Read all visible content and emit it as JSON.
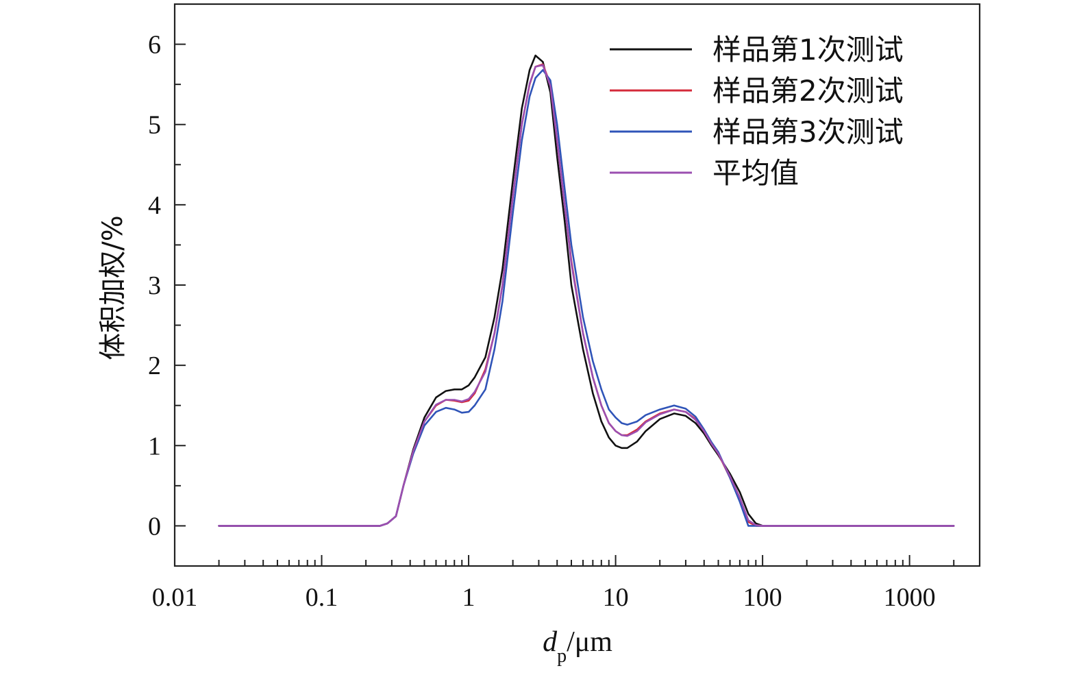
{
  "chart_data": {
    "type": "line",
    "x_scale": "log",
    "xlim": [
      0.01,
      3000
    ],
    "ylim": [
      -0.5,
      6.5
    ],
    "xlabel_main": "d",
    "xlabel_sub": "p",
    "xlabel_unit": "/μm",
    "ylabel": "体积加权/%",
    "x_ticks": [
      "0.01",
      "0.1",
      "1",
      "10",
      "100",
      "1000"
    ],
    "y_ticks": [
      "0",
      "1",
      "2",
      "3",
      "4",
      "5",
      "6"
    ],
    "legend_position": "top-right",
    "series": [
      {
        "name": "样品第1次测试",
        "color": "#111111",
        "points": [
          [
            0.02,
            0
          ],
          [
            0.1,
            0
          ],
          [
            0.25,
            0
          ],
          [
            0.28,
            0.03
          ],
          [
            0.32,
            0.12
          ],
          [
            0.36,
            0.5
          ],
          [
            0.42,
            0.95
          ],
          [
            0.5,
            1.35
          ],
          [
            0.6,
            1.6
          ],
          [
            0.7,
            1.68
          ],
          [
            0.8,
            1.7
          ],
          [
            0.9,
            1.7
          ],
          [
            1.0,
            1.75
          ],
          [
            1.1,
            1.85
          ],
          [
            1.3,
            2.1
          ],
          [
            1.5,
            2.6
          ],
          [
            1.7,
            3.2
          ],
          [
            2.0,
            4.3
          ],
          [
            2.3,
            5.2
          ],
          [
            2.6,
            5.68
          ],
          [
            2.85,
            5.86
          ],
          [
            3.2,
            5.78
          ],
          [
            3.6,
            5.4
          ],
          [
            4.0,
            4.6
          ],
          [
            4.5,
            3.8
          ],
          [
            5.0,
            3.0
          ],
          [
            6.0,
            2.2
          ],
          [
            7.0,
            1.65
          ],
          [
            8.0,
            1.3
          ],
          [
            9.0,
            1.1
          ],
          [
            10,
            1.0
          ],
          [
            11,
            0.97
          ],
          [
            12,
            0.97
          ],
          [
            14,
            1.05
          ],
          [
            16,
            1.18
          ],
          [
            20,
            1.33
          ],
          [
            25,
            1.4
          ],
          [
            30,
            1.37
          ],
          [
            35,
            1.28
          ],
          [
            40,
            1.15
          ],
          [
            45,
            1.0
          ],
          [
            50,
            0.88
          ],
          [
            60,
            0.65
          ],
          [
            70,
            0.42
          ],
          [
            80,
            0.15
          ],
          [
            90,
            0.03
          ],
          [
            100,
            0
          ],
          [
            500,
            0
          ],
          [
            2000,
            0
          ]
        ]
      },
      {
        "name": "样品第2次测试",
        "color": "#d42a3a",
        "points": [
          [
            0.02,
            0
          ],
          [
            0.1,
            0
          ],
          [
            0.25,
            0
          ],
          [
            0.28,
            0.03
          ],
          [
            0.32,
            0.12
          ],
          [
            0.36,
            0.5
          ],
          [
            0.42,
            0.93
          ],
          [
            0.5,
            1.3
          ],
          [
            0.6,
            1.5
          ],
          [
            0.7,
            1.57
          ],
          [
            0.8,
            1.56
          ],
          [
            0.9,
            1.54
          ],
          [
            1.0,
            1.56
          ],
          [
            1.1,
            1.65
          ],
          [
            1.3,
            1.95
          ],
          [
            1.5,
            2.4
          ],
          [
            1.7,
            3.0
          ],
          [
            2.0,
            4.1
          ],
          [
            2.3,
            5.0
          ],
          [
            2.6,
            5.5
          ],
          [
            2.85,
            5.72
          ],
          [
            3.2,
            5.75
          ],
          [
            3.6,
            5.5
          ],
          [
            4.0,
            4.8
          ],
          [
            4.5,
            4.0
          ],
          [
            5.0,
            3.3
          ],
          [
            6.0,
            2.4
          ],
          [
            7.0,
            1.85
          ],
          [
            8.0,
            1.5
          ],
          [
            9.0,
            1.28
          ],
          [
            10,
            1.18
          ],
          [
            11,
            1.13
          ],
          [
            12,
            1.13
          ],
          [
            14,
            1.2
          ],
          [
            16,
            1.3
          ],
          [
            20,
            1.4
          ],
          [
            25,
            1.45
          ],
          [
            30,
            1.42
          ],
          [
            35,
            1.33
          ],
          [
            40,
            1.18
          ],
          [
            45,
            1.02
          ],
          [
            50,
            0.9
          ],
          [
            60,
            0.6
          ],
          [
            70,
            0.32
          ],
          [
            80,
            0.05
          ],
          [
            90,
            0
          ],
          [
            100,
            0
          ],
          [
            500,
            0
          ],
          [
            2000,
            0
          ]
        ]
      },
      {
        "name": "样品第3次测试",
        "color": "#2f54b8",
        "points": [
          [
            0.02,
            0
          ],
          [
            0.1,
            0
          ],
          [
            0.25,
            0
          ],
          [
            0.28,
            0.03
          ],
          [
            0.32,
            0.12
          ],
          [
            0.36,
            0.5
          ],
          [
            0.42,
            0.9
          ],
          [
            0.5,
            1.25
          ],
          [
            0.6,
            1.42
          ],
          [
            0.7,
            1.47
          ],
          [
            0.8,
            1.45
          ],
          [
            0.9,
            1.41
          ],
          [
            1.0,
            1.42
          ],
          [
            1.1,
            1.5
          ],
          [
            1.3,
            1.7
          ],
          [
            1.5,
            2.2
          ],
          [
            1.7,
            2.8
          ],
          [
            2.0,
            3.9
          ],
          [
            2.3,
            4.8
          ],
          [
            2.6,
            5.35
          ],
          [
            2.85,
            5.58
          ],
          [
            3.2,
            5.68
          ],
          [
            3.6,
            5.55
          ],
          [
            4.0,
            5.0
          ],
          [
            4.5,
            4.2
          ],
          [
            5.0,
            3.5
          ],
          [
            6.0,
            2.6
          ],
          [
            7.0,
            2.05
          ],
          [
            8.0,
            1.7
          ],
          [
            9.0,
            1.45
          ],
          [
            10,
            1.35
          ],
          [
            11,
            1.28
          ],
          [
            12,
            1.26
          ],
          [
            14,
            1.3
          ],
          [
            16,
            1.38
          ],
          [
            20,
            1.45
          ],
          [
            25,
            1.5
          ],
          [
            30,
            1.46
          ],
          [
            35,
            1.36
          ],
          [
            40,
            1.2
          ],
          [
            45,
            1.04
          ],
          [
            50,
            0.92
          ],
          [
            60,
            0.6
          ],
          [
            70,
            0.3
          ],
          [
            80,
            0
          ],
          [
            90,
            0
          ],
          [
            100,
            0
          ],
          [
            500,
            0
          ],
          [
            2000,
            0
          ]
        ]
      },
      {
        "name": "平均值",
        "color": "#9b4fb0",
        "points": [
          [
            0.02,
            0
          ],
          [
            0.1,
            0
          ],
          [
            0.25,
            0
          ],
          [
            0.28,
            0.03
          ],
          [
            0.32,
            0.12
          ],
          [
            0.36,
            0.5
          ],
          [
            0.42,
            0.93
          ],
          [
            0.5,
            1.3
          ],
          [
            0.6,
            1.51
          ],
          [
            0.7,
            1.57
          ],
          [
            0.8,
            1.57
          ],
          [
            0.9,
            1.55
          ],
          [
            1.0,
            1.58
          ],
          [
            1.1,
            1.67
          ],
          [
            1.3,
            1.92
          ],
          [
            1.5,
            2.4
          ],
          [
            1.7,
            3.0
          ],
          [
            2.0,
            4.1
          ],
          [
            2.3,
            5.0
          ],
          [
            2.6,
            5.51
          ],
          [
            2.85,
            5.72
          ],
          [
            3.2,
            5.74
          ],
          [
            3.6,
            5.48
          ],
          [
            4.0,
            4.8
          ],
          [
            4.5,
            4.0
          ],
          [
            5.0,
            3.27
          ],
          [
            6.0,
            2.4
          ],
          [
            7.0,
            1.85
          ],
          [
            8.0,
            1.5
          ],
          [
            9.0,
            1.28
          ],
          [
            10,
            1.18
          ],
          [
            11,
            1.13
          ],
          [
            12,
            1.12
          ],
          [
            14,
            1.18
          ],
          [
            16,
            1.29
          ],
          [
            20,
            1.39
          ],
          [
            25,
            1.45
          ],
          [
            30,
            1.42
          ],
          [
            35,
            1.32
          ],
          [
            40,
            1.18
          ],
          [
            45,
            1.02
          ],
          [
            50,
            0.9
          ],
          [
            60,
            0.62
          ],
          [
            70,
            0.35
          ],
          [
            80,
            0.07
          ],
          [
            90,
            0.01
          ],
          [
            100,
            0
          ],
          [
            500,
            0
          ],
          [
            2000,
            0
          ]
        ]
      }
    ]
  }
}
